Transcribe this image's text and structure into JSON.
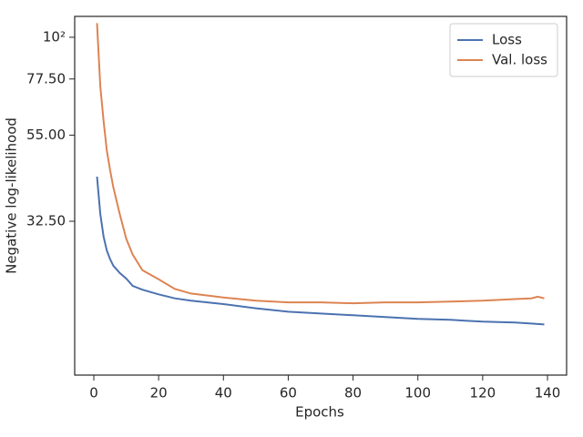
{
  "chart_data": {
    "type": "line",
    "x_label": "Epochs",
    "y_label": "Negative log-likelihood",
    "x": [
      1,
      2,
      3,
      4,
      5,
      6,
      8,
      10,
      12,
      15,
      20,
      25,
      30,
      40,
      50,
      60,
      70,
      80,
      90,
      100,
      110,
      120,
      130,
      135,
      137,
      139
    ],
    "series": [
      {
        "name": "Loss",
        "color": "#4c72b0",
        "values": [
          42.7,
          34,
          29.6,
          27.2,
          25.8,
          24.8,
          23.7,
          22.9,
          21.9,
          21.4,
          20.8,
          20.3,
          20.0,
          19.6,
          19.1,
          18.7,
          18.5,
          18.3,
          18.1,
          17.9,
          17.8,
          17.6,
          17.5,
          17.4,
          17.35,
          17.3
        ]
      },
      {
        "name": "Val. loss",
        "color": "#dd8452",
        "values": [
          109,
          74.2,
          60,
          50.2,
          44.5,
          40.1,
          34,
          29.2,
          26.5,
          24.1,
          22.8,
          21.5,
          20.9,
          20.4,
          20.0,
          19.8,
          19.8,
          19.7,
          19.8,
          19.8,
          19.9,
          20.0,
          20.2,
          20.3,
          20.5,
          20.3
        ]
      }
    ],
    "xlim": [
      -5.9,
      145.9
    ],
    "xticks": [
      0,
      20,
      40,
      60,
      80,
      100,
      120,
      140
    ],
    "ylim": [
      12.7,
      113.6
    ],
    "yscale": "log",
    "yticks": [
      {
        "value": 100,
        "label": "10²"
      },
      {
        "value": 77.5,
        "label": "77.50"
      },
      {
        "value": 55,
        "label": "55.00"
      },
      {
        "value": 32.5,
        "label": "32.50"
      }
    ],
    "legend": "upper right",
    "grid": false
  }
}
